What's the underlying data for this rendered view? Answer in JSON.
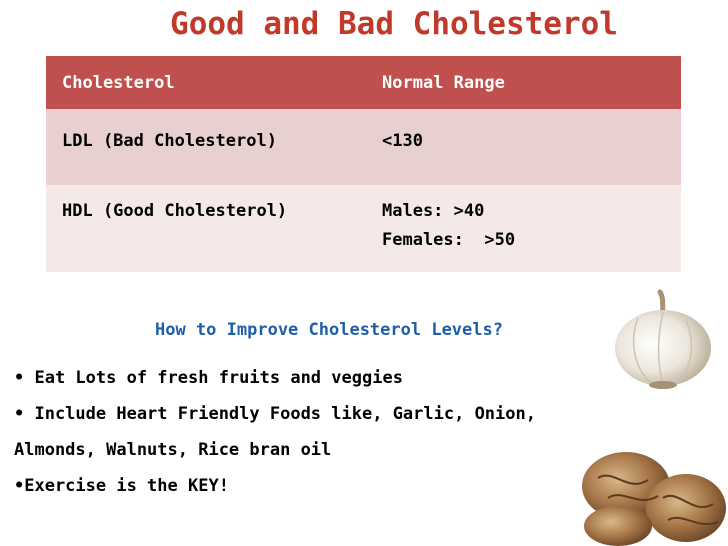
{
  "slide": {
    "title": "Good and Bad Cholesterol"
  },
  "table": {
    "headers": [
      "Cholesterol",
      "Normal Range"
    ],
    "rows": [
      {
        "name": "LDL (Bad Cholesterol)",
        "range": [
          "<130"
        ]
      },
      {
        "name": "HDL (Good Cholesterol)",
        "range": [
          "Males: >40",
          "Females:  >50"
        ]
      }
    ]
  },
  "tips": {
    "heading": "How to Improve Cholesterol Levels?",
    "items": [
      "• Eat Lots of fresh fruits and veggies",
      "• Include Heart Friendly Foods like, Garlic, Onion,",
      "Almonds, Walnuts, Rice bran oil",
      "•Exercise is the KEY!"
    ]
  },
  "images": {
    "garlic": "garlic-bulb-image",
    "walnuts": "walnuts-image"
  },
  "colors": {
    "title": "#c0392b",
    "header_bg": "#c0504d",
    "row1_bg": "#e8d0d0",
    "row2_bg": "#f4e8e8",
    "subhead": "#1f5fa8"
  }
}
